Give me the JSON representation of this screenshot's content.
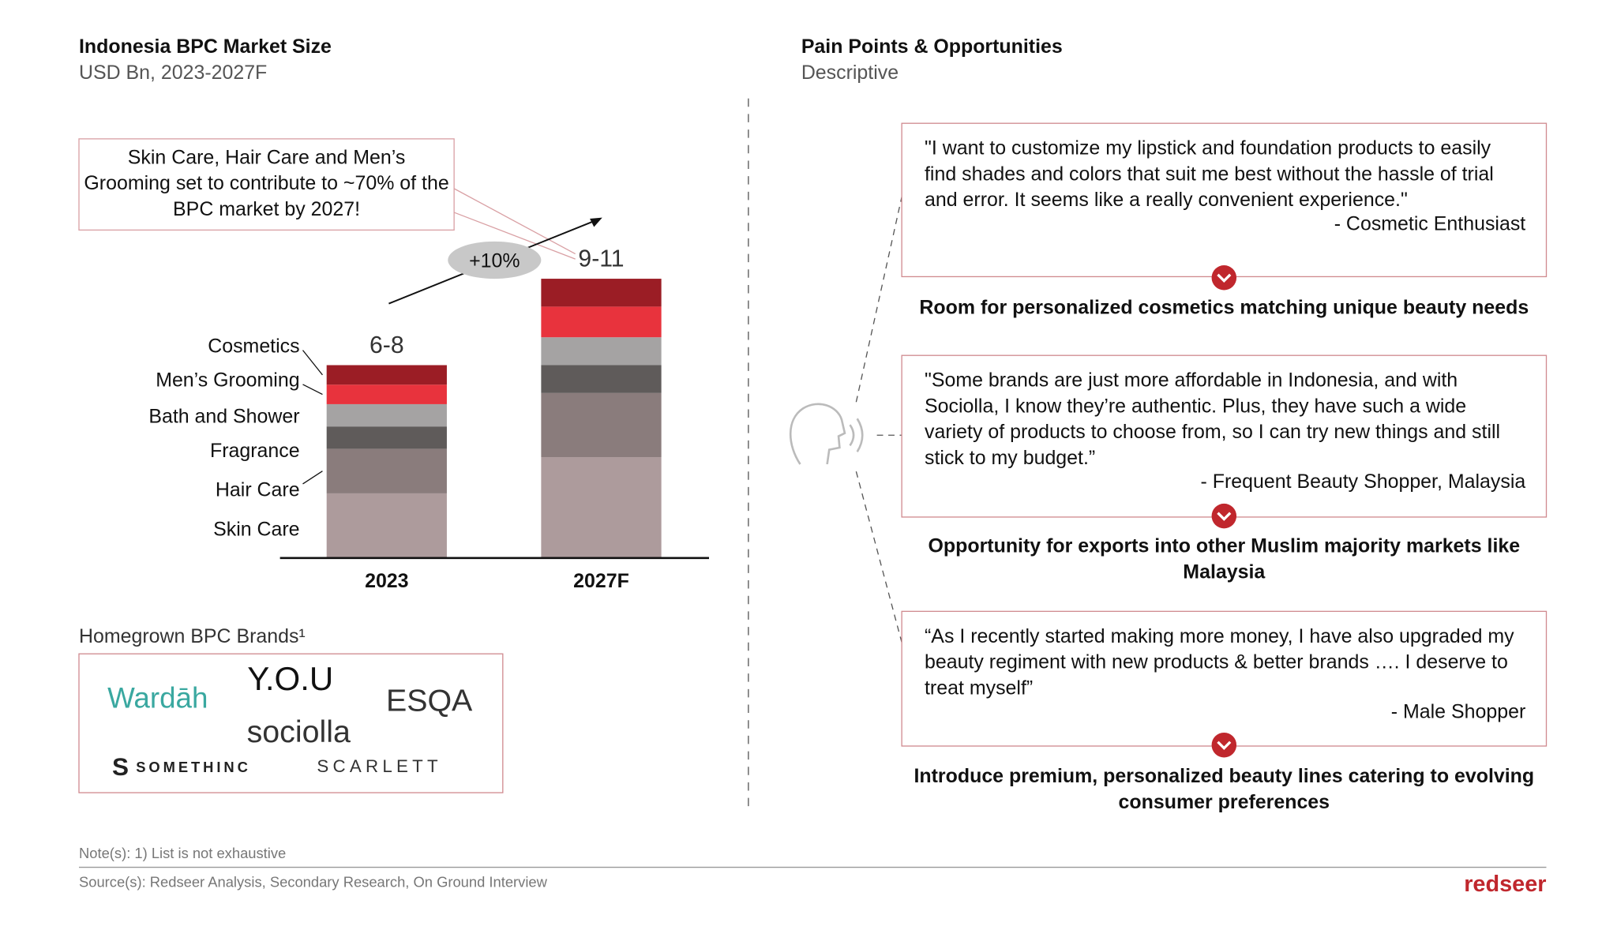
{
  "left": {
    "title": "Indonesia BPC Market Size",
    "subtitle": "USD Bn, 2023-2027F",
    "callout": "Skin Care, Hair Care and Men’s Grooming set to contribute to ~70% of the BPC market by 2027!"
  },
  "chart_data": {
    "type": "stacked_bar",
    "categories": [
      "2023",
      "2027F"
    ],
    "total_labels": [
      "6-8",
      "9-11"
    ],
    "growth_label": "+10%",
    "series": [
      {
        "name": "Skin Care",
        "color": "#ad9b9c",
        "values": [
          2.3,
          3.6
        ]
      },
      {
        "name": "Hair Care",
        "color": "#8a7c7c",
        "values": [
          1.6,
          2.3
        ]
      },
      {
        "name": "Fragrance",
        "color": "#5f5b5a",
        "values": [
          0.8,
          1.0
        ]
      },
      {
        "name": "Bath and Shower",
        "color": "#a5a3a3",
        "values": [
          0.8,
          1.0
        ]
      },
      {
        "name": "Men’s Grooming",
        "color": "#e8333d",
        "values": [
          0.7,
          1.1
        ]
      },
      {
        "name": "Cosmetics",
        "color": "#9b1d25",
        "values": [
          0.7,
          1.0
        ]
      }
    ]
  },
  "brands": {
    "title": "Homegrown BPC Brands¹",
    "names": [
      "Wardāh",
      "Y.O.U",
      "ESQA",
      "sociolla",
      "SOMETHINC",
      "SCARLETT"
    ]
  },
  "right": {
    "title": "Pain Points & Opportunities",
    "subtitle": "Descriptive",
    "items": [
      {
        "quote": "\"I want to customize my lipstick and foundation products to easily find shades and colors that suit me best without the hassle of trial and error. It seems like a really convenient experience.\"",
        "source": "- Cosmetic Enthusiast",
        "insight": "Room for personalized cosmetics matching unique beauty needs"
      },
      {
        "quote": "\"Some brands are just more affordable in Indonesia, and with Sociolla, I know they’re authentic. Plus, they have such a wide variety of products to choose from, so I can try new things and still stick to my budget.”",
        "source": "- Frequent Beauty Shopper, Malaysia",
        "insight": "Opportunity for exports into other Muslim majority markets like Malaysia"
      },
      {
        "quote": "“As I recently started making more money, I have also upgraded my beauty regiment with new products & better brands …. I deserve to treat myself”",
        "source": "- Male Shopper",
        "insight": "Introduce premium, personalized beauty lines catering to evolving consumer preferences"
      }
    ]
  },
  "footer": {
    "note": "Note(s): 1) List is not exhaustive",
    "source": "Source(s): Redseer Analysis, Secondary Research, On Ground Interview",
    "logo": "redseer"
  }
}
